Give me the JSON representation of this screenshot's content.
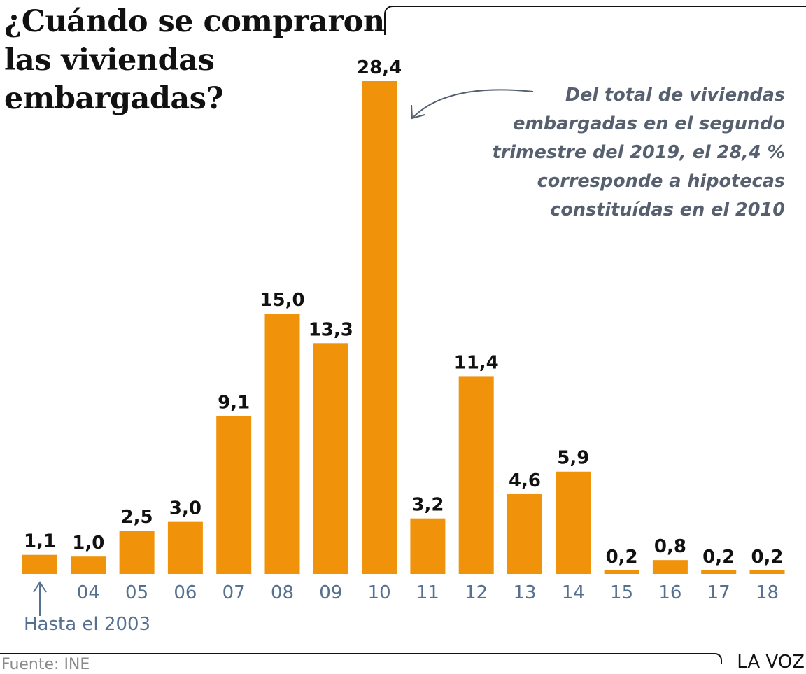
{
  "title_lines": [
    "¿Cuándo se compraron",
    "las viviendas",
    "embargadas?"
  ],
  "annotation_lines": [
    "Del total de viviendas",
    "embargadas en el segundo",
    "trimestre del 2019, el 28,4 %",
    "corresponde a hipotecas",
    "constituídas en el 2010"
  ],
  "first_bar_note": "Hasta el 2003",
  "source": "Fuente: INE",
  "brand": "LA VOZ",
  "colors": {
    "bar": "#f0930a",
    "tick": "#56708f",
    "annotation": "#56606f",
    "value": "#111111"
  },
  "chart_data": {
    "type": "bar",
    "title": "¿Cuándo se compraron las viviendas embargadas?",
    "xlabel": "",
    "ylabel": "",
    "unit": "%",
    "categories": [
      "≤03",
      "04",
      "05",
      "06",
      "07",
      "08",
      "09",
      "10",
      "11",
      "12",
      "13",
      "14",
      "15",
      "16",
      "17",
      "18"
    ],
    "tick_labels": [
      "",
      "04",
      "05",
      "06",
      "07",
      "08",
      "09",
      "10",
      "11",
      "12",
      "13",
      "14",
      "15",
      "16",
      "17",
      "18"
    ],
    "values": [
      1.1,
      1.0,
      2.5,
      3.0,
      9.1,
      15.0,
      13.3,
      28.4,
      3.2,
      11.4,
      4.6,
      5.9,
      0.2,
      0.8,
      0.2,
      0.2
    ],
    "value_labels": [
      "1,1",
      "1,0",
      "2,5",
      "3,0",
      "9,1",
      "15,0",
      "13,3",
      "28,4",
      "3,2",
      "11,4",
      "4,6",
      "5,9",
      "0,2",
      "0,8",
      "0,2",
      "0,2"
    ],
    "ylim": [
      0,
      28.4
    ],
    "grid": false,
    "legend": "none",
    "annotations": [
      {
        "target": "10",
        "text": "Del total de viviendas embargadas en el segundo trimestre del 2019, el 28,4 % corresponde a hipotecas constituídas en el 2010"
      },
      {
        "target": "≤03",
        "text": "Hasta el 2003"
      }
    ]
  }
}
